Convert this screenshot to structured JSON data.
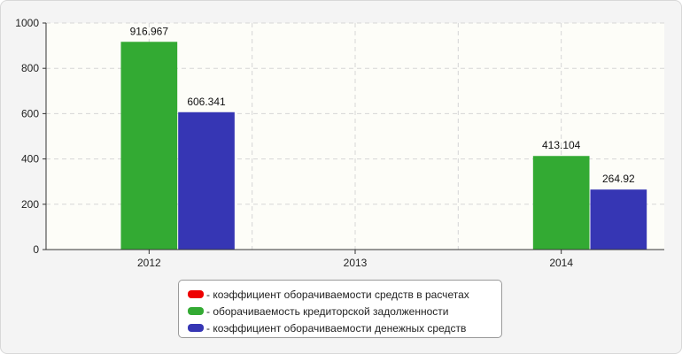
{
  "chart_data": {
    "type": "bar",
    "categories": [
      "2012",
      "2013",
      "2014"
    ],
    "series": [
      {
        "name": "- коэффициент оборачиваемости средств в расчетах",
        "color": "#ee0000",
        "values": [
          null,
          null,
          null
        ]
      },
      {
        "name": "- оборачиваемость кредиторской задолженности",
        "color": "#33aa33",
        "values": [
          916.967,
          null,
          413.104
        ]
      },
      {
        "name": "- коэффициент оборачиваемости денежных средств",
        "color": "#3636b4",
        "values": [
          606.341,
          null,
          264.92
        ]
      }
    ],
    "y_ticks": [
      0,
      200,
      400,
      600,
      800,
      1000
    ],
    "ylim": [
      0,
      1000
    ],
    "grid": true,
    "legend_position": "bottom-center",
    "title": "",
    "xlabel": "",
    "ylabel": ""
  }
}
